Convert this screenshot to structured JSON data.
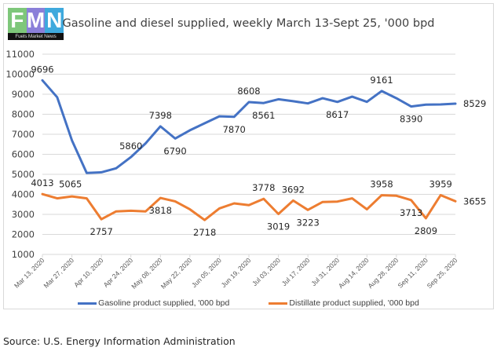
{
  "logo": {
    "letters": [
      "F",
      "M",
      "N"
    ],
    "letter_colors": [
      "#7ec77a",
      "#8a7fd9",
      "#3fa9dd"
    ],
    "tagline": "Fuels Market News"
  },
  "source_note": "Source: U.S. Energy Information Administration",
  "chart_data": {
    "type": "line",
    "title": "Gasoline and diesel supplied, weekly March 13-Sept 25, '000 bpd",
    "xlabel": "",
    "ylabel": "",
    "ylim": [
      1000,
      11000
    ],
    "yticks": [
      1000,
      2000,
      3000,
      4000,
      5000,
      6000,
      7000,
      8000,
      9000,
      10000,
      11000
    ],
    "grid": true,
    "legend_position": "bottom",
    "x": [
      "Mar 13, 2020",
      "Mar 20, 2020",
      "Mar 27, 2020",
      "Apr 03, 2020",
      "Apr 10, 2020",
      "Apr 17, 2020",
      "Apr 24, 2020",
      "May 01, 2020",
      "May 08, 2020",
      "May 15, 2020",
      "May 22, 2020",
      "May 29, 2020",
      "Jun 05, 2020",
      "Jun 12, 2020",
      "Jun 19, 2020",
      "Jun 26, 2020",
      "Jul 03, 2020",
      "Jul 10, 2020",
      "Jul 17, 2020",
      "Jul 24, 2020",
      "Jul 31, 2020",
      "Aug 07, 2020",
      "Aug 14, 2020",
      "Aug 21, 2020",
      "Aug 28, 2020",
      "Sep 04, 2020",
      "Sep 11, 2020",
      "Sep 18, 2020",
      "Sep 25, 2020"
    ],
    "xtick_labels": [
      "Mar 13, 2020",
      "Mar 27, 2020",
      "Apr 10, 2020",
      "Apr 24, 2020",
      "May 08, 2020",
      "May 22, 2020",
      "Jun 05, 2020",
      "Jun 19, 2020",
      "Jul 03, 2020",
      "Jul 17, 2020",
      "Jul 31, 2020",
      "Aug 14, 2020",
      "Aug 28, 2020",
      "Sep 11, 2020",
      "Sep 25, 2020"
    ],
    "series": [
      {
        "name": "Gasoline product supplied, '000 bpd",
        "color": "#4472c4",
        "values": [
          9696,
          8850,
          6700,
          5065,
          5100,
          5300,
          5860,
          6550,
          7398,
          6790,
          7200,
          7550,
          7900,
          7870,
          8608,
          8561,
          8750,
          8650,
          8540,
          8800,
          8617,
          8880,
          8620,
          9161,
          8800,
          8390,
          8480,
          8490,
          8529
        ],
        "labels": [
          {
            "index": 0,
            "text": "9696",
            "pos": "above"
          },
          {
            "index": 3,
            "text": "5065",
            "pos": "left"
          },
          {
            "index": 6,
            "text": "5860",
            "pos": "above"
          },
          {
            "index": 8,
            "text": "7398",
            "pos": "above"
          },
          {
            "index": 9,
            "text": "6790",
            "pos": "below"
          },
          {
            "index": 13,
            "text": "7870",
            "pos": "below"
          },
          {
            "index": 14,
            "text": "8608",
            "pos": "above"
          },
          {
            "index": 15,
            "text": "8561",
            "pos": "below"
          },
          {
            "index": 20,
            "text": "8617",
            "pos": "below"
          },
          {
            "index": 23,
            "text": "9161",
            "pos": "above"
          },
          {
            "index": 25,
            "text": "8390",
            "pos": "below"
          },
          {
            "index": 28,
            "text": "8529",
            "pos": "right"
          }
        ]
      },
      {
        "name": "Distillate product supplied, '000 bpd",
        "color": "#ed7d31",
        "values": [
          4013,
          3800,
          3900,
          3800,
          2757,
          3150,
          3180,
          3150,
          3818,
          3650,
          3250,
          2718,
          3300,
          3550,
          3460,
          3778,
          3019,
          3692,
          3223,
          3620,
          3640,
          3800,
          3250,
          3958,
          3930,
          3713,
          2809,
          3959,
          3655
        ],
        "labels": [
          {
            "index": 0,
            "text": "4013",
            "pos": "above"
          },
          {
            "index": 4,
            "text": "2757",
            "pos": "below"
          },
          {
            "index": 8,
            "text": "3818",
            "pos": "below"
          },
          {
            "index": 11,
            "text": "2718",
            "pos": "below"
          },
          {
            "index": 15,
            "text": "3778",
            "pos": "above"
          },
          {
            "index": 16,
            "text": "3019",
            "pos": "below"
          },
          {
            "index": 17,
            "text": "3692",
            "pos": "above"
          },
          {
            "index": 18,
            "text": "3223",
            "pos": "below"
          },
          {
            "index": 23,
            "text": "3958",
            "pos": "above"
          },
          {
            "index": 25,
            "text": "3713",
            "pos": "below"
          },
          {
            "index": 26,
            "text": "2809",
            "pos": "below"
          },
          {
            "index": 27,
            "text": "3959",
            "pos": "above"
          },
          {
            "index": 28,
            "text": "3655",
            "pos": "right"
          }
        ]
      }
    ]
  }
}
